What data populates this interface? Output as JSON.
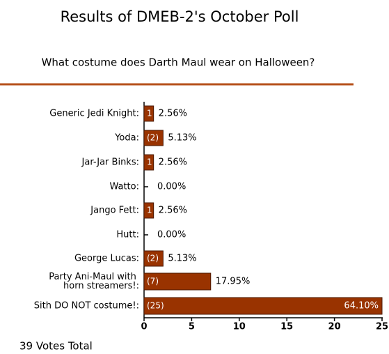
{
  "chart_data": {
    "type": "bar",
    "orientation": "horizontal",
    "title": "Results of DMEB-2's October Poll",
    "subtitle": "What costume does Darth Maul wear on Halloween?",
    "categories": [
      "Generic Jedi Knight:",
      "Yoda:",
      "Jar-Jar Binks:",
      "Watto:",
      "Jango Fett:",
      "Hutt:",
      "George Lucas:",
      "Party Ani-Maul with horn streamers!:",
      "Sith DO NOT costume!:"
    ],
    "values": [
      1,
      2,
      1,
      0,
      1,
      0,
      2,
      7,
      25
    ],
    "value_labels": [
      "1",
      "(2)",
      "1",
      null,
      "1",
      null,
      "(2)",
      "(7)",
      "(25)"
    ],
    "percent_labels": [
      "2.56%",
      "5.13%",
      "2.56%",
      "0.00%",
      "2.56%",
      "0.00%",
      "5.13%",
      "17.95%",
      "64.10%"
    ],
    "color": "#993300",
    "xlim": [
      0,
      25
    ],
    "xticks": [
      0,
      5,
      10,
      15,
      20,
      25
    ],
    "footer": "39 Votes Total"
  }
}
